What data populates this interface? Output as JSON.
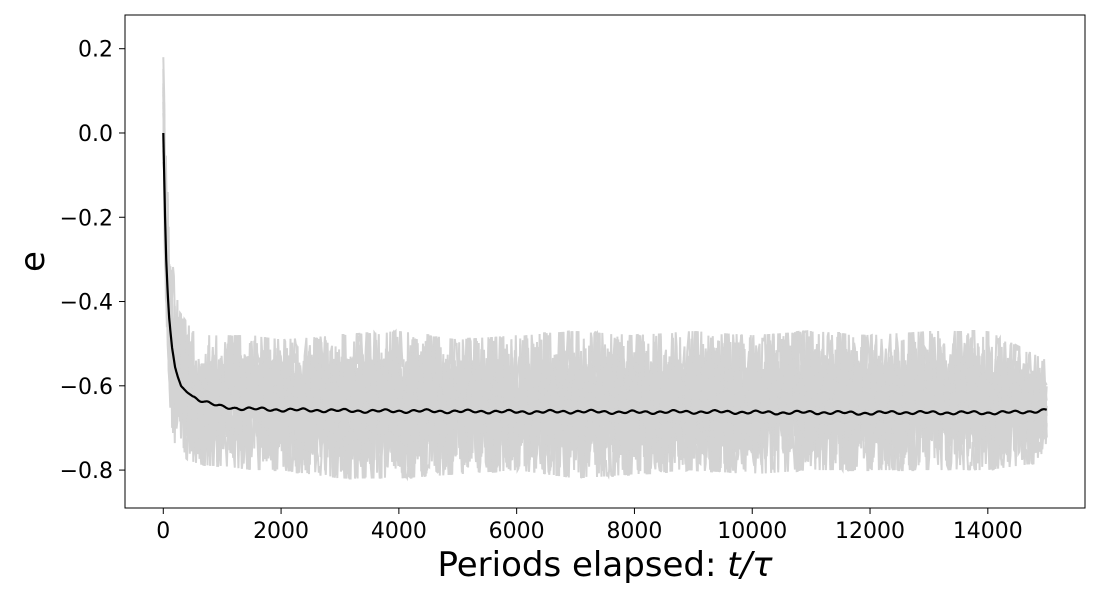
{
  "chart_data": {
    "type": "line",
    "title": "",
    "xlabel": "Periods elapsed: ",
    "xlabel_math": "t/τ",
    "ylabel": "e",
    "xlim": [
      -650,
      15650
    ],
    "ylim": [
      -0.89,
      0.28
    ],
    "xticks": [
      0,
      2000,
      4000,
      6000,
      8000,
      10000,
      12000,
      14000
    ],
    "xtick_labels": [
      "0",
      "2000",
      "4000",
      "6000",
      "8000",
      "10000",
      "12000",
      "14000"
    ],
    "yticks": [
      0.2,
      0.0,
      -0.2,
      -0.4,
      -0.6,
      -0.8
    ],
    "ytick_labels": [
      "0.2",
      "0.0",
      "−0.2",
      "−0.4",
      "−0.6",
      "−0.8"
    ],
    "grid": false,
    "legend": "none",
    "series": [
      {
        "role": "mean",
        "color": "#000000",
        "x": [
          0,
          25,
          50,
          75,
          100,
          150,
          200,
          250,
          300,
          400,
          500,
          600,
          800,
          1000,
          1250,
          1500,
          2000,
          2500,
          3000,
          3500,
          4000,
          4500,
          5000,
          5500,
          6000,
          6500,
          7000,
          7500,
          8000,
          8500,
          9000,
          9500,
          10000,
          10500,
          11000,
          11500,
          12000,
          12500,
          13000,
          13500,
          14000,
          14500,
          15000
        ],
        "y": [
          0.0,
          -0.17,
          -0.3,
          -0.38,
          -0.44,
          -0.51,
          -0.556,
          -0.58,
          -0.6,
          -0.615,
          -0.625,
          -0.632,
          -0.643,
          -0.65,
          -0.653,
          -0.655,
          -0.657,
          -0.658,
          -0.659,
          -0.66,
          -0.66,
          -0.66,
          -0.661,
          -0.661,
          -0.662,
          -0.662,
          -0.661,
          -0.662,
          -0.663,
          -0.662,
          -0.662,
          -0.662,
          -0.663,
          -0.664,
          -0.663,
          -0.664,
          -0.665,
          -0.663,
          -0.664,
          -0.664,
          -0.664,
          -0.663,
          -0.658
        ]
      },
      {
        "role": "realizations-band",
        "color": "#d3d3d3",
        "x": [
          0,
          25,
          50,
          100,
          150,
          200,
          250,
          300,
          400,
          500,
          700,
          1000,
          1500,
          2000,
          3000,
          4000,
          5000,
          6000,
          7000,
          8000,
          9000,
          10000,
          11000,
          12000,
          13000,
          14000,
          15000
        ],
        "upper": [
          0.23,
          0.05,
          -0.08,
          -0.2,
          -0.3,
          -0.36,
          -0.4,
          -0.43,
          -0.45,
          -0.47,
          -0.48,
          -0.48,
          -0.48,
          -0.49,
          -0.48,
          -0.47,
          -0.49,
          -0.48,
          -0.47,
          -0.48,
          -0.47,
          -0.48,
          -0.47,
          -0.48,
          -0.47,
          -0.47,
          -0.54
        ],
        "lower": [
          -0.1,
          -0.35,
          -0.5,
          -0.62,
          -0.7,
          -0.74,
          -0.77,
          -0.78,
          -0.78,
          -0.78,
          -0.79,
          -0.79,
          -0.8,
          -0.8,
          -0.82,
          -0.82,
          -0.81,
          -0.8,
          -0.82,
          -0.81,
          -0.8,
          -0.81,
          -0.8,
          -0.8,
          -0.8,
          -0.8,
          -0.78
        ]
      }
    ]
  }
}
